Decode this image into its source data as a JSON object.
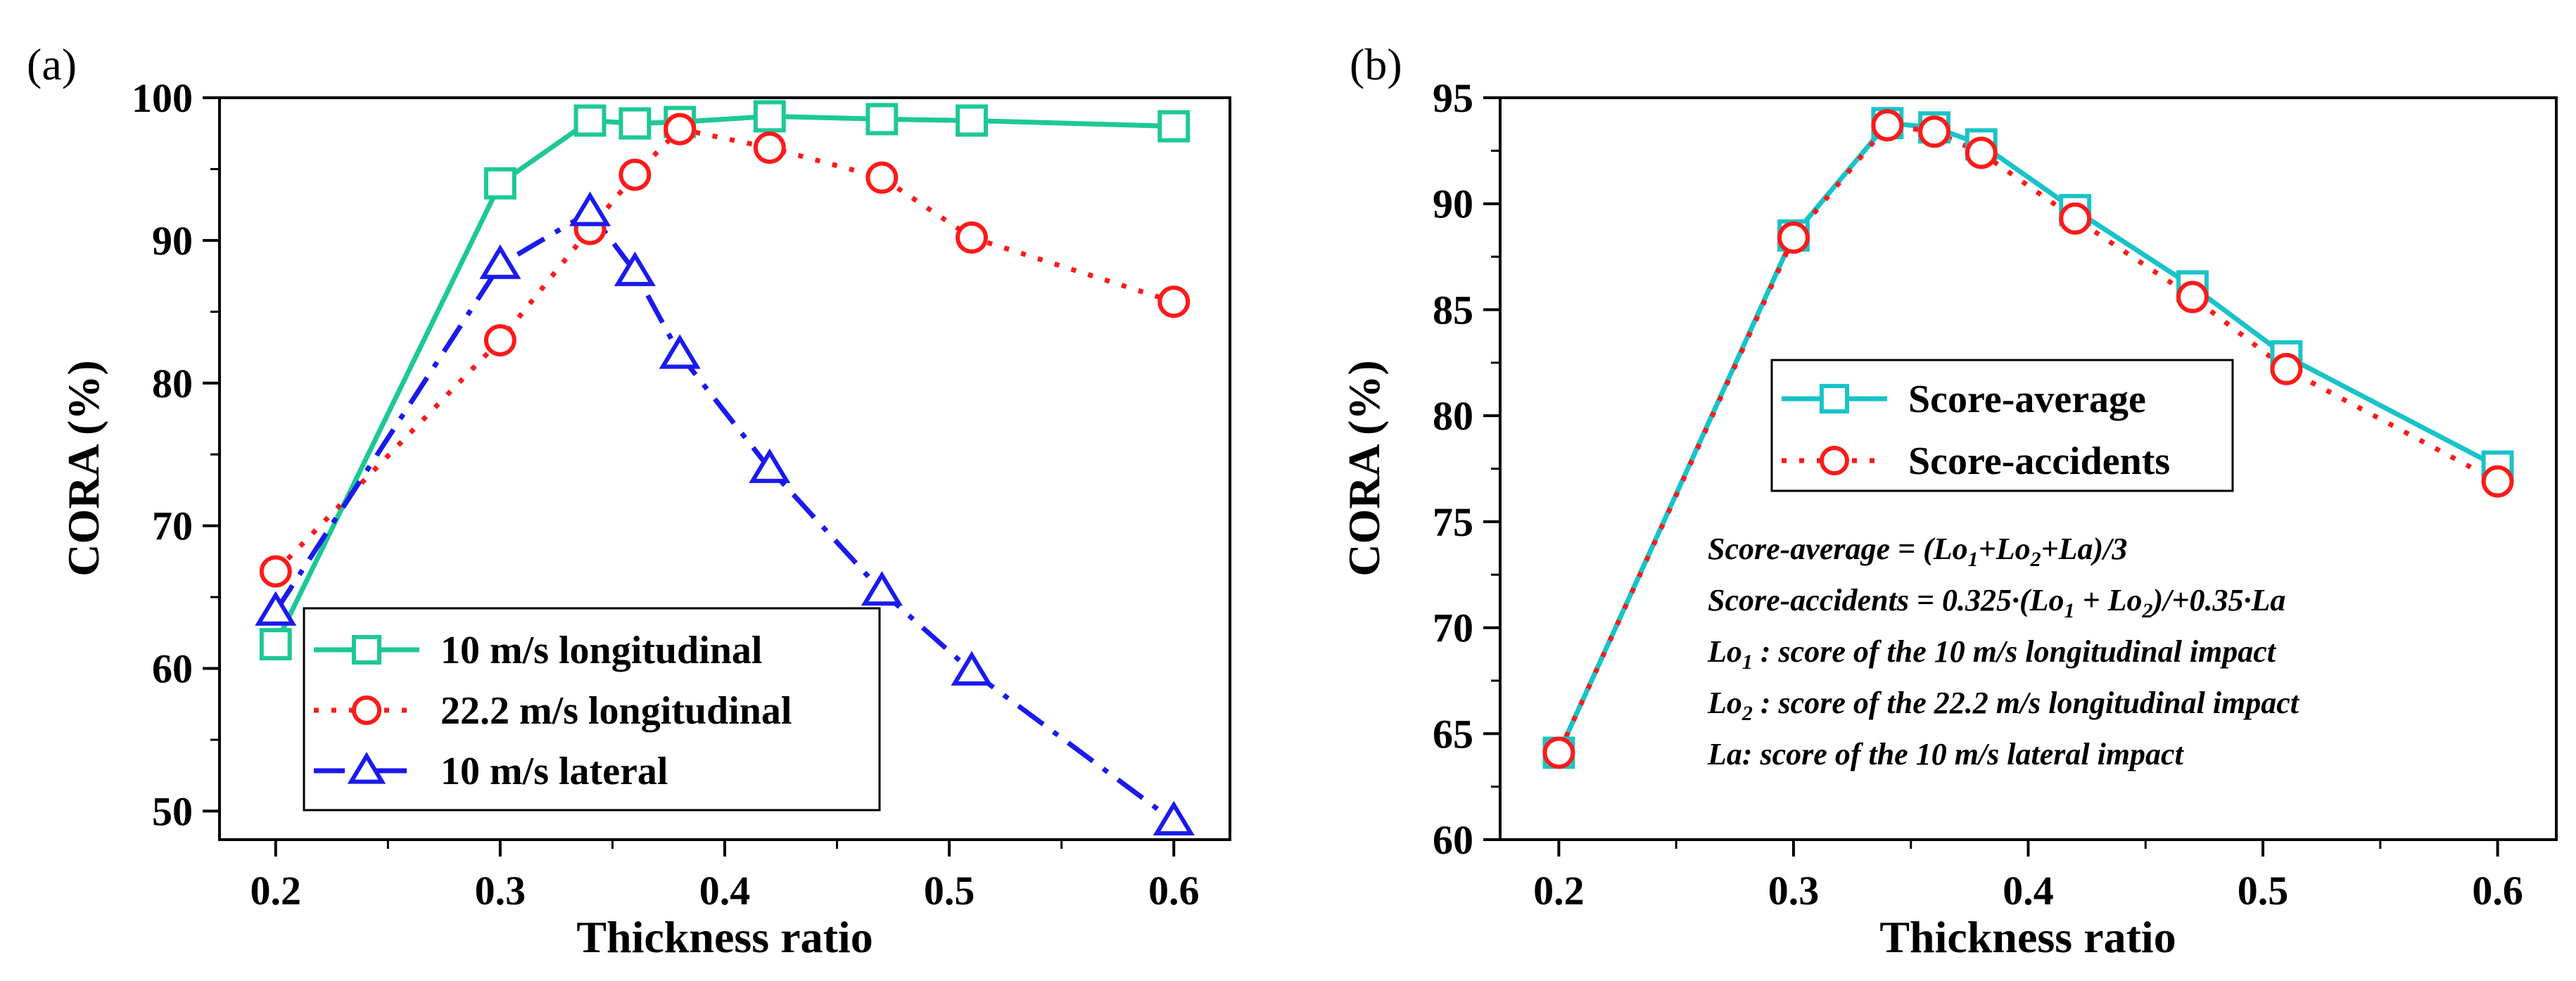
{
  "chart_data": [
    {
      "panel": "(a)",
      "type": "line",
      "xlabel": "Thickness ratio",
      "ylabel": "CORA (%)",
      "xlim": [
        0.175,
        0.625
      ],
      "ylim": [
        48,
        100
      ],
      "xticks": [
        0.2,
        0.3,
        0.4,
        0.5,
        0.6
      ],
      "yticks": [
        50,
        60,
        70,
        80,
        90,
        100
      ],
      "grid": false,
      "legend_position": "bottom-right",
      "series": [
        {
          "name": "10 m/s longitudinal",
          "color": "#1ec896",
          "dash": "solid",
          "marker": "square",
          "x": [
            0.2,
            0.3,
            0.34,
            0.36,
            0.38,
            0.42,
            0.47,
            0.51,
            0.6
          ],
          "y": [
            61.7,
            94.0,
            98.4,
            98.2,
            98.3,
            98.7,
            98.5,
            98.4,
            98.0
          ]
        },
        {
          "name": "22.2 m/s longitudinal",
          "color": "#ff1a1a",
          "dash": "dot",
          "marker": "circle",
          "x": [
            0.2,
            0.3,
            0.34,
            0.36,
            0.38,
            0.42,
            0.47,
            0.51,
            0.6
          ],
          "y": [
            66.8,
            83.0,
            90.8,
            94.6,
            97.8,
            96.5,
            94.4,
            90.2,
            85.7
          ]
        },
        {
          "name": "10 m/s lateral",
          "color": "#1a1aee",
          "dash": "dashdot",
          "marker": "triangle",
          "x": [
            0.2,
            0.3,
            0.34,
            0.36,
            0.38,
            0.42,
            0.47,
            0.51,
            0.6
          ],
          "y": [
            64.0,
            88.3,
            92.0,
            87.8,
            82.0,
            74.0,
            65.4,
            59.8,
            49.3
          ]
        }
      ]
    },
    {
      "panel": "(b)",
      "type": "line",
      "xlabel": "Thickness ratio",
      "ylabel": "CORA (%)",
      "xlim": [
        0.175,
        0.625
      ],
      "ylim": [
        60,
        95
      ],
      "xticks": [
        0.2,
        0.3,
        0.4,
        0.5,
        0.6
      ],
      "yticks": [
        60,
        65,
        70,
        75,
        80,
        85,
        90,
        95
      ],
      "grid": false,
      "legend_position": "middle-right",
      "series": [
        {
          "name": "Score-average",
          "color": "#19c3c8",
          "dash": "solid",
          "marker": "square",
          "x": [
            0.2,
            0.3,
            0.34,
            0.36,
            0.38,
            0.42,
            0.47,
            0.51,
            0.6
          ],
          "y": [
            64.1,
            88.5,
            93.8,
            93.6,
            92.8,
            89.7,
            86.1,
            82.8,
            77.6
          ]
        },
        {
          "name": "Score-accidents",
          "color": "#ff1a1a",
          "dash": "dot",
          "marker": "circle",
          "x": [
            0.2,
            0.3,
            0.34,
            0.36,
            0.38,
            0.42,
            0.47,
            0.51,
            0.6
          ],
          "y": [
            64.1,
            88.4,
            93.7,
            93.4,
            92.4,
            89.3,
            85.6,
            82.2,
            76.9
          ]
        }
      ],
      "annotations": [
        {
          "parts": [
            [
              "Score-average = (Lo",
              ""
            ],
            [
              "1",
              "sub"
            ],
            [
              "+Lo",
              ""
            ],
            [
              "2",
              "sub"
            ],
            [
              "+La)/3",
              ""
            ]
          ]
        },
        {
          "parts": [
            [
              "Score-accidents = 0.325·(Lo",
              ""
            ],
            [
              "1",
              "sub"
            ],
            [
              " + Lo",
              ""
            ],
            [
              "2",
              "sub"
            ],
            [
              ")/+0.35·La",
              ""
            ]
          ]
        },
        {
          "parts": [
            [
              "Lo",
              ""
            ],
            [
              "1",
              "sub"
            ],
            [
              " : score of the 10 m/s longitudinal impact",
              ""
            ]
          ]
        },
        {
          "parts": [
            [
              "Lo",
              ""
            ],
            [
              "2",
              "sub"
            ],
            [
              " : score of the 22.2 m/s longitudinal impact",
              ""
            ]
          ]
        },
        {
          "parts": [
            [
              "La: score of the 10 m/s lateral impact",
              ""
            ]
          ]
        }
      ]
    }
  ]
}
